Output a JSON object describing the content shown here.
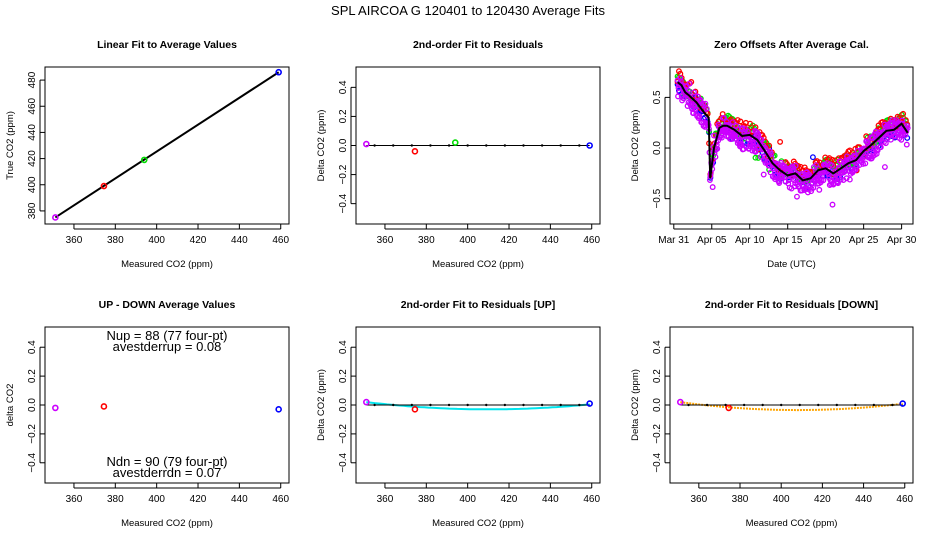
{
  "title": "SPL   AIRCOA G   120401 to 120430   Average Fits",
  "colors": {
    "purple": "#cc00ff",
    "red": "#ff0000",
    "green": "#00dd00",
    "blue": "#0000ff",
    "cyan": "#00e5ee",
    "orange": "#ffa500",
    "black": "#000000"
  },
  "chart_data": [
    {
      "type": "scatter",
      "title": "Linear Fit to Average Values",
      "xlabel": "Measured CO2 (ppm)",
      "ylabel": "True CO2 (ppm)",
      "xlim": [
        346,
        464
      ],
      "ylim": [
        370,
        490
      ],
      "xticks": [
        360,
        380,
        400,
        420,
        440,
        460
      ],
      "yticks": [
        380,
        400,
        420,
        440,
        460,
        480
      ],
      "points": [
        {
          "x": 351,
          "y": 375,
          "color": "purple"
        },
        {
          "x": 374.5,
          "y": 399,
          "color": "red"
        },
        {
          "x": 394,
          "y": 419,
          "color": "green"
        },
        {
          "x": 459,
          "y": 486,
          "color": "blue"
        }
      ],
      "fit_line": [
        [
          351,
          375
        ],
        [
          459,
          486
        ]
      ]
    },
    {
      "type": "scatter",
      "title": "2nd-order Fit to Residuals",
      "xlabel": "Measured CO2 (ppm)",
      "ylabel": "Delta CO2 (ppm)",
      "xlim": [
        346,
        464
      ],
      "ylim": [
        -0.54,
        0.54
      ],
      "xticks": [
        360,
        380,
        400,
        420,
        440,
        460
      ],
      "yticks": [
        -0.4,
        -0.2,
        0.0,
        0.2,
        0.4
      ],
      "points": [
        {
          "x": 351,
          "y": 0.01,
          "color": "purple"
        },
        {
          "x": 374.5,
          "y": -0.04,
          "color": "red"
        },
        {
          "x": 394,
          "y": 0.02,
          "color": "green"
        },
        {
          "x": 459,
          "y": 0.0,
          "color": "blue"
        }
      ],
      "fit_curve": {
        "a": 0,
        "b": 0,
        "c": 0,
        "color": "black"
      }
    },
    {
      "type": "line",
      "title": "Zero Offsets After Average Cal.",
      "xlabel": "Date (UTC)",
      "ylabel": "Delta CO2 (ppm)",
      "xlim": [
        -0.5,
        31.5
      ],
      "ylim": [
        -0.75,
        0.8
      ],
      "xticks": [
        0,
        5,
        10,
        15,
        20,
        25,
        30
      ],
      "xticklabels": [
        "Mar 31",
        "Apr 05",
        "Apr 10",
        "Apr 15",
        "Apr 20",
        "Apr 25",
        "Apr 30"
      ],
      "yticks": [
        -0.5,
        0.0,
        0.5
      ],
      "mean_series": [
        [
          0.5,
          0.65
        ],
        [
          1,
          0.62
        ],
        [
          1.5,
          0.55
        ],
        [
          2,
          0.52
        ],
        [
          3,
          0.45
        ],
        [
          4,
          0.35
        ],
        [
          4.6,
          0.3
        ],
        [
          4.8,
          -0.3
        ],
        [
          5.3,
          0.0
        ],
        [
          6,
          0.2
        ],
        [
          6.5,
          0.22
        ],
        [
          7,
          0.22
        ],
        [
          8,
          0.18
        ],
        [
          9,
          0.12
        ],
        [
          10,
          0.13
        ],
        [
          11,
          0.08
        ],
        [
          12,
          -0.03
        ],
        [
          13,
          -0.15
        ],
        [
          14,
          -0.22
        ],
        [
          15,
          -0.27
        ],
        [
          16,
          -0.25
        ],
        [
          17,
          -0.32
        ],
        [
          18,
          -0.3
        ],
        [
          19,
          -0.22
        ],
        [
          20,
          -0.2
        ],
        [
          21,
          -0.25
        ],
        [
          22,
          -0.2
        ],
        [
          23,
          -0.15
        ],
        [
          24,
          -0.12
        ],
        [
          25,
          -0.03
        ],
        [
          26,
          0.03
        ],
        [
          27,
          0.1
        ],
        [
          28,
          0.17
        ],
        [
          29,
          0.18
        ],
        [
          30,
          0.24
        ],
        [
          30.8,
          0.15
        ]
      ],
      "series_colors": [
        "blue",
        "green",
        "red",
        "purple"
      ]
    },
    {
      "type": "scatter",
      "title": "UP - DOWN Average Values",
      "xlabel": "Measured CO2 (ppm)",
      "ylabel": "delta CO2",
      "xlim": [
        346,
        464
      ],
      "ylim": [
        -0.54,
        0.54
      ],
      "xticks": [
        360,
        380,
        400,
        420,
        440,
        460
      ],
      "yticks": [
        -0.4,
        -0.2,
        0.0,
        0.2,
        0.4
      ],
      "points": [
        {
          "x": 351,
          "y": -0.02,
          "color": "purple"
        },
        {
          "x": 374.5,
          "y": -0.01,
          "color": "red"
        },
        {
          "x": 459,
          "y": -0.03,
          "color": "blue"
        }
      ],
      "annotations": {
        "up_line1": "Nup = 88 (77 four-pt)",
        "up_line2": "avestderrup =  0.08",
        "dn_line1": "Ndn = 90 (79 four-pt)",
        "dn_line2": "avestderrdn =  0.07"
      }
    },
    {
      "type": "scatter",
      "title": "2nd-order Fit to Residuals [UP]",
      "xlabel": "Measured CO2 (ppm)",
      "ylabel": "Delta CO2 (ppm)",
      "xlim": [
        346,
        464
      ],
      "ylim": [
        -0.54,
        0.54
      ],
      "xticks": [
        360,
        380,
        400,
        420,
        440,
        460
      ],
      "yticks": [
        -0.4,
        -0.2,
        0.0,
        0.2,
        0.4
      ],
      "points": [
        {
          "x": 351,
          "y": 0.02,
          "color": "purple"
        },
        {
          "x": 374.5,
          "y": -0.03,
          "color": "red"
        },
        {
          "x": 459,
          "y": 0.01,
          "color": "blue"
        }
      ],
      "fit_curve": {
        "vertex_x": 410,
        "vertex_y": -0.03,
        "x0": 351,
        "y0": 0.02,
        "color": "cyan"
      }
    },
    {
      "type": "scatter",
      "title": "2nd-order Fit to Residuals [DOWN]",
      "xlabel": "Measured CO2 (ppm)",
      "ylabel": "Delta CO2 (ppm)",
      "xlim": [
        346,
        464
      ],
      "ylim": [
        -0.54,
        0.54
      ],
      "xticks": [
        360,
        380,
        400,
        420,
        440,
        460
      ],
      "yticks": [
        -0.4,
        -0.2,
        0.0,
        0.2,
        0.4
      ],
      "points": [
        {
          "x": 351,
          "y": 0.02,
          "color": "purple"
        },
        {
          "x": 374.5,
          "y": -0.02,
          "color": "red"
        },
        {
          "x": 459,
          "y": 0.01,
          "color": "blue"
        }
      ],
      "fit_curve": {
        "vertex_x": 408,
        "vertex_y": -0.035,
        "x0": 351,
        "y0": 0.02,
        "color": "orange"
      }
    }
  ]
}
